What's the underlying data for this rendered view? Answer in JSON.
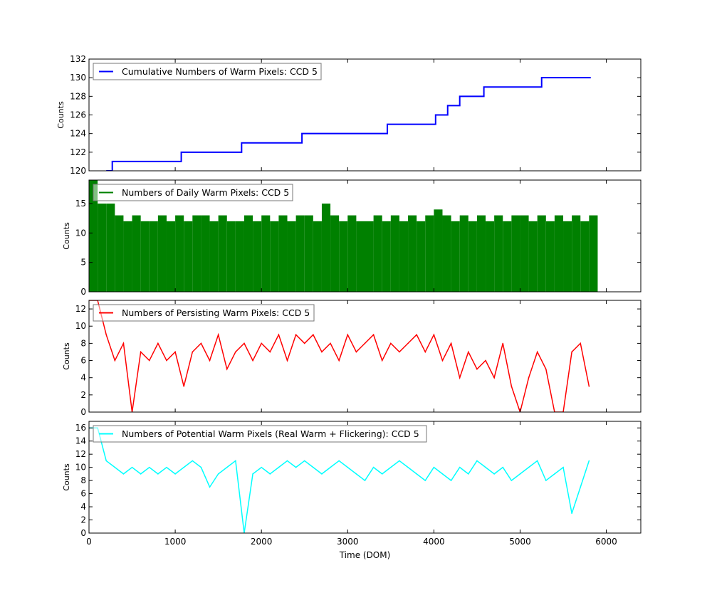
{
  "chart_data": [
    {
      "type": "line",
      "ylabel": "Counts",
      "ylim": [
        120,
        132
      ],
      "yticks": [
        120,
        122,
        124,
        126,
        128,
        130,
        132
      ],
      "xlim": [
        0,
        6400
      ],
      "step": true,
      "legend_placement": "top-left",
      "series": [
        {
          "name": "Cumulative Numbers of Warm Pixels: CCD 5",
          "color": "#0000ff",
          "x": [
            200,
            270,
            1070,
            1770,
            2470,
            3460,
            4020,
            4160,
            4300,
            4580,
            5250,
            5820
          ],
          "y": [
            120,
            121,
            122,
            123,
            124,
            125,
            126,
            127,
            128,
            129,
            130,
            130
          ]
        }
      ]
    },
    {
      "type": "line",
      "ylabel": "Counts",
      "ylim": [
        0,
        19
      ],
      "yticks": [
        0,
        5,
        10,
        15
      ],
      "xlim": [
        0,
        6400
      ],
      "legend_placement": "top-left",
      "series": [
        {
          "name": "Numbers of Daily Warm Pixels: CCD 5",
          "color": "#008000",
          "x": [
            0,
            100,
            200,
            300,
            400,
            500,
            600,
            700,
            800,
            900,
            1000,
            1100,
            1200,
            1300,
            1400,
            1500,
            1600,
            1700,
            1800,
            1900,
            2000,
            2100,
            2200,
            2300,
            2400,
            2500,
            2600,
            2700,
            2800,
            2900,
            3000,
            3100,
            3200,
            3300,
            3400,
            3500,
            3600,
            3700,
            3800,
            3900,
            4000,
            4100,
            4200,
            4300,
            4400,
            4500,
            4600,
            4700,
            4800,
            4900,
            5000,
            5100,
            5200,
            5300,
            5400,
            5500,
            5600,
            5700,
            5800
          ],
          "y": [
            19,
            15,
            15,
            13,
            12,
            13,
            12,
            12,
            13,
            12,
            13,
            12,
            13,
            13,
            12,
            13,
            12,
            12,
            13,
            12,
            13,
            12,
            13,
            12,
            13,
            13,
            12,
            15,
            13,
            12,
            13,
            12,
            12,
            13,
            12,
            13,
            12,
            13,
            12,
            13,
            14,
            13,
            12,
            13,
            12,
            13,
            12,
            13,
            12,
            13,
            13,
            12,
            13,
            12,
            13,
            12,
            13,
            12,
            13
          ]
        }
      ]
    },
    {
      "type": "line",
      "ylabel": "Counts",
      "ylim": [
        0,
        13
      ],
      "yticks": [
        0,
        2,
        4,
        6,
        8,
        10,
        12
      ],
      "xlim": [
        0,
        6400
      ],
      "legend_placement": "top-left",
      "series": [
        {
          "name": "Numbers of Persisting Warm Pixels: CCD 5",
          "color": "#ff0000",
          "x": [
            0,
            100,
            200,
            300,
            400,
            500,
            600,
            700,
            800,
            900,
            1000,
            1100,
            1200,
            1300,
            1400,
            1500,
            1600,
            1700,
            1800,
            1900,
            2000,
            2100,
            2200,
            2300,
            2400,
            2500,
            2600,
            2700,
            2800,
            2900,
            3000,
            3100,
            3200,
            3300,
            3400,
            3500,
            3600,
            3700,
            3800,
            3900,
            4000,
            4100,
            4200,
            4300,
            4400,
            4500,
            4600,
            4700,
            4800,
            4900,
            5000,
            5100,
            5200,
            5300,
            5400,
            5500,
            5600,
            5700,
            5800
          ],
          "y": [
            13,
            13,
            9,
            6,
            8,
            0,
            7,
            6,
            8,
            6,
            7,
            3,
            7,
            8,
            6,
            9,
            5,
            7,
            8,
            6,
            8,
            7,
            9,
            6,
            9,
            8,
            9,
            7,
            8,
            6,
            9,
            7,
            8,
            9,
            6,
            8,
            7,
            8,
            9,
            7,
            9,
            6,
            8,
            4,
            7,
            5,
            6,
            4,
            8,
            3,
            0,
            4,
            7,
            5,
            0,
            0,
            7,
            8,
            3
          ]
        }
      ]
    },
    {
      "type": "line",
      "ylabel": "Counts",
      "xlabel": "Time (DOM)",
      "ylim": [
        0,
        17
      ],
      "yticks": [
        0,
        2,
        4,
        6,
        8,
        10,
        12,
        14,
        16
      ],
      "xlim": [
        0,
        6400
      ],
      "xticks": [
        0,
        1000,
        2000,
        3000,
        4000,
        5000,
        6000
      ],
      "legend_placement": "top-left",
      "series": [
        {
          "name": "Numbers of Potential Warm Pixels (Real Warm + Flickering): CCD 5",
          "color": "#00ffff",
          "x": [
            0,
            100,
            200,
            300,
            400,
            500,
            600,
            700,
            800,
            900,
            1000,
            1100,
            1200,
            1300,
            1400,
            1500,
            1600,
            1700,
            1800,
            1900,
            2000,
            2100,
            2200,
            2300,
            2400,
            2500,
            2600,
            2700,
            2800,
            2900,
            3000,
            3100,
            3200,
            3300,
            3400,
            3500,
            3600,
            3700,
            3800,
            3900,
            4000,
            4100,
            4200,
            4300,
            4400,
            4500,
            4600,
            4700,
            4800,
            4900,
            5000,
            5100,
            5200,
            5300,
            5400,
            5500,
            5600,
            5700,
            5800
          ],
          "y": [
            16,
            16,
            11,
            10,
            9,
            10,
            9,
            10,
            9,
            10,
            9,
            10,
            11,
            10,
            7,
            9,
            10,
            11,
            0,
            9,
            10,
            9,
            10,
            11,
            10,
            11,
            10,
            9,
            10,
            11,
            10,
            9,
            8,
            10,
            9,
            10,
            11,
            10,
            9,
            8,
            10,
            9,
            8,
            10,
            9,
            11,
            10,
            9,
            10,
            8,
            9,
            10,
            11,
            8,
            9,
            10,
            3,
            7,
            11
          ]
        }
      ]
    }
  ]
}
